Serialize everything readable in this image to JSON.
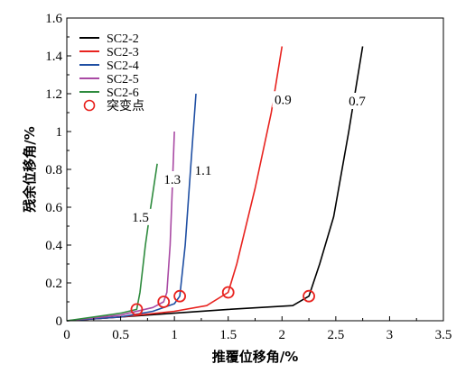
{
  "chart_data": {
    "type": "line",
    "xlabel": "推覆位移角/%",
    "ylabel": "残余位移角/%",
    "xlim": [
      0,
      3.5
    ],
    "ylim": [
      0,
      1.6
    ],
    "x_ticks": [
      "0",
      "0.5",
      "1",
      "1.5",
      "2",
      "2.5",
      "3",
      "3.5"
    ],
    "y_ticks": [
      "0",
      "0.2",
      "0.4",
      "0.6",
      "0.8",
      "1",
      "1.2",
      "1.4",
      "1.6"
    ],
    "grid": false,
    "legend_position": "top-left",
    "series": [
      {
        "name": "SC2-2",
        "color": "#000000",
        "points": [
          [
            0,
            0
          ],
          [
            0.5,
            0.02
          ],
          [
            1.0,
            0.04
          ],
          [
            1.5,
            0.06
          ],
          [
            2.1,
            0.08
          ],
          [
            2.25,
            0.13
          ],
          [
            2.35,
            0.3
          ],
          [
            2.48,
            0.55
          ],
          [
            2.62,
            1.0
          ],
          [
            2.75,
            1.45
          ]
        ],
        "breakpoint": [
          2.25,
          0.13
        ],
        "annotation": "0.7"
      },
      {
        "name": "SC2-3",
        "color": "#e8231f",
        "points": [
          [
            0,
            0
          ],
          [
            0.5,
            0.02
          ],
          [
            1.0,
            0.05
          ],
          [
            1.3,
            0.08
          ],
          [
            1.5,
            0.15
          ],
          [
            1.58,
            0.3
          ],
          [
            1.75,
            0.7
          ],
          [
            1.9,
            1.1
          ],
          [
            2.0,
            1.45
          ]
        ],
        "breakpoint": [
          1.5,
          0.15
        ],
        "annotation": "0.9"
      },
      {
        "name": "SC2-4",
        "color": "#1f4fa3",
        "points": [
          [
            0,
            0
          ],
          [
            0.5,
            0.02
          ],
          [
            0.8,
            0.05
          ],
          [
            1.0,
            0.09
          ],
          [
            1.05,
            0.13
          ],
          [
            1.1,
            0.4
          ],
          [
            1.15,
            0.8
          ],
          [
            1.2,
            1.2
          ]
        ],
        "breakpoint": [
          1.05,
          0.13
        ],
        "annotation": "1.1"
      },
      {
        "name": "SC2-5",
        "color": "#a94aa4",
        "points": [
          [
            0,
            0
          ],
          [
            0.5,
            0.03
          ],
          [
            0.8,
            0.07
          ],
          [
            0.9,
            0.1
          ],
          [
            0.93,
            0.15
          ],
          [
            0.96,
            0.4
          ],
          [
            0.98,
            0.7
          ],
          [
            1.0,
            1.0
          ]
        ],
        "breakpoint": [
          0.9,
          0.1
        ],
        "annotation": "1.3"
      },
      {
        "name": "SC2-6",
        "color": "#2e8b3e",
        "points": [
          [
            0,
            0
          ],
          [
            0.5,
            0.04
          ],
          [
            0.65,
            0.06
          ],
          [
            0.68,
            0.15
          ],
          [
            0.73,
            0.4
          ],
          [
            0.78,
            0.6
          ],
          [
            0.84,
            0.83
          ]
        ],
        "breakpoint": [
          0.65,
          0.06
        ],
        "annotation": "1.5"
      }
    ],
    "marker_legend": {
      "label": "突变点",
      "color": "#e8231f"
    }
  }
}
